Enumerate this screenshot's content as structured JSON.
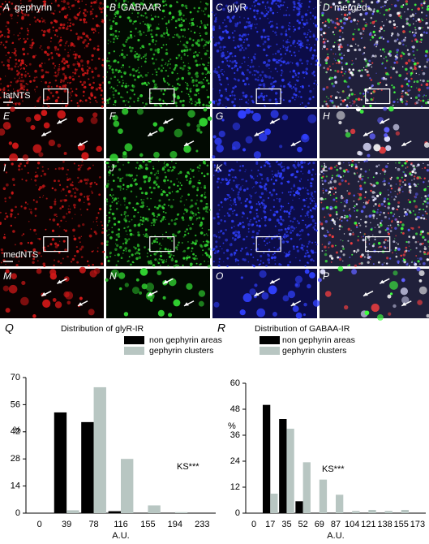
{
  "panels": [
    {
      "letter": "A",
      "label": "gephyrin"
    },
    {
      "letter": "B",
      "label": "GABAAR"
    },
    {
      "letter": "C",
      "label": "glyR"
    },
    {
      "letter": "D",
      "label": "merged"
    },
    {
      "letter": "E"
    },
    {
      "letter": "F"
    },
    {
      "letter": "G"
    },
    {
      "letter": "H"
    },
    {
      "letter": "I"
    },
    {
      "letter": "J"
    },
    {
      "letter": "K"
    },
    {
      "letter": "L"
    },
    {
      "letter": "M"
    },
    {
      "letter": "N"
    },
    {
      "letter": "O"
    },
    {
      "letter": "P"
    }
  ],
  "regions": [
    "latNTS",
    "medNTS"
  ],
  "chart_data": [
    {
      "type": "bar",
      "panel": "Q",
      "title": "Distribution of glyR-IR",
      "x_label": "A.U.",
      "y_label": "%",
      "annotation": "KS***",
      "categories": [
        "0",
        "39",
        "78",
        "116",
        "155",
        "194",
        "233"
      ],
      "series": [
        {
          "name": "non gephyrin areas",
          "color": "#000000",
          "values": [
            0,
            52,
            47,
            1,
            0,
            0,
            0
          ]
        },
        {
          "name": "gephyrin clusters",
          "color": "#b8c6c2",
          "values": [
            0,
            1.5,
            65,
            28,
            4,
            0.5,
            0
          ]
        }
      ],
      "ylim": [
        0,
        70
      ],
      "yticks": [
        0,
        14,
        28,
        42,
        56,
        70
      ]
    },
    {
      "type": "bar",
      "panel": "R",
      "title": "Distribution of GABAA-IR",
      "x_label": "A.U.",
      "y_label": "%",
      "annotation": "KS***",
      "categories": [
        "0",
        "17",
        "35",
        "52",
        "69",
        "87",
        "104",
        "121",
        "138",
        "155",
        "173"
      ],
      "series": [
        {
          "name": "non gephyrin areas",
          "color": "#000000",
          "values": [
            0,
            50,
            43.5,
            5.5,
            0,
            0,
            0,
            0,
            0,
            0,
            0
          ]
        },
        {
          "name": "gephyrin clusters",
          "color": "#b8c6c2",
          "values": [
            0,
            9,
            39,
            23.5,
            15.5,
            8.5,
            1,
            1.5,
            1,
            1.5,
            0
          ]
        }
      ],
      "ylim": [
        0,
        60
      ],
      "yticks": [
        0,
        12,
        24,
        36,
        48,
        60
      ]
    }
  ]
}
